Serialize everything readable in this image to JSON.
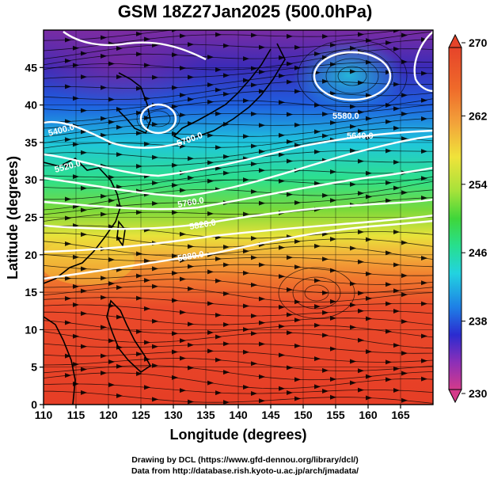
{
  "title": "GSM 18Z27Jan2025 (500.0hPa)",
  "map": {
    "xlabel": "Longitude (degrees)",
    "ylabel": "Latitude  (degrees)",
    "lon_range": [
      110,
      170
    ],
    "lat_range": [
      0,
      50
    ],
    "lon_ticks": [
      "110",
      "115",
      "120",
      "125",
      "130",
      "135",
      "140",
      "145",
      "150",
      "155",
      "160",
      "165"
    ],
    "lat_ticks": [
      "0",
      "5",
      "10",
      "15",
      "20",
      "25",
      "30",
      "35",
      "40",
      "45"
    ],
    "colorbar": {
      "range": [
        230,
        270
      ],
      "labels": [
        "270",
        "262",
        "254",
        "246",
        "238",
        "230"
      ],
      "colors": [
        "#d43a8a",
        "#8c2fb8",
        "#2b2bd0",
        "#1e7fe6",
        "#22d3e0",
        "#27df8e",
        "#3fd63a",
        "#a6e23a",
        "#f0e33a",
        "#f2a23a",
        "#ef6a2a",
        "#e6442a"
      ]
    },
    "contour_labels": [
      "5400.0",
      "5520.0",
      "5580.0",
      "5640.0",
      "5700.0",
      "5760.0",
      "5820.0",
      "5880.0"
    ],
    "colors": {
      "contour": "#ffffff",
      "streamline": "#000000",
      "coast": "#000000"
    }
  },
  "credits": {
    "line1": "Drawing by DCL (https://www.gfd-dennou.org/library/dcl/)",
    "line2": "Data from http://database.rish.kyoto-u.ac.jp/arch/jmadata/"
  }
}
